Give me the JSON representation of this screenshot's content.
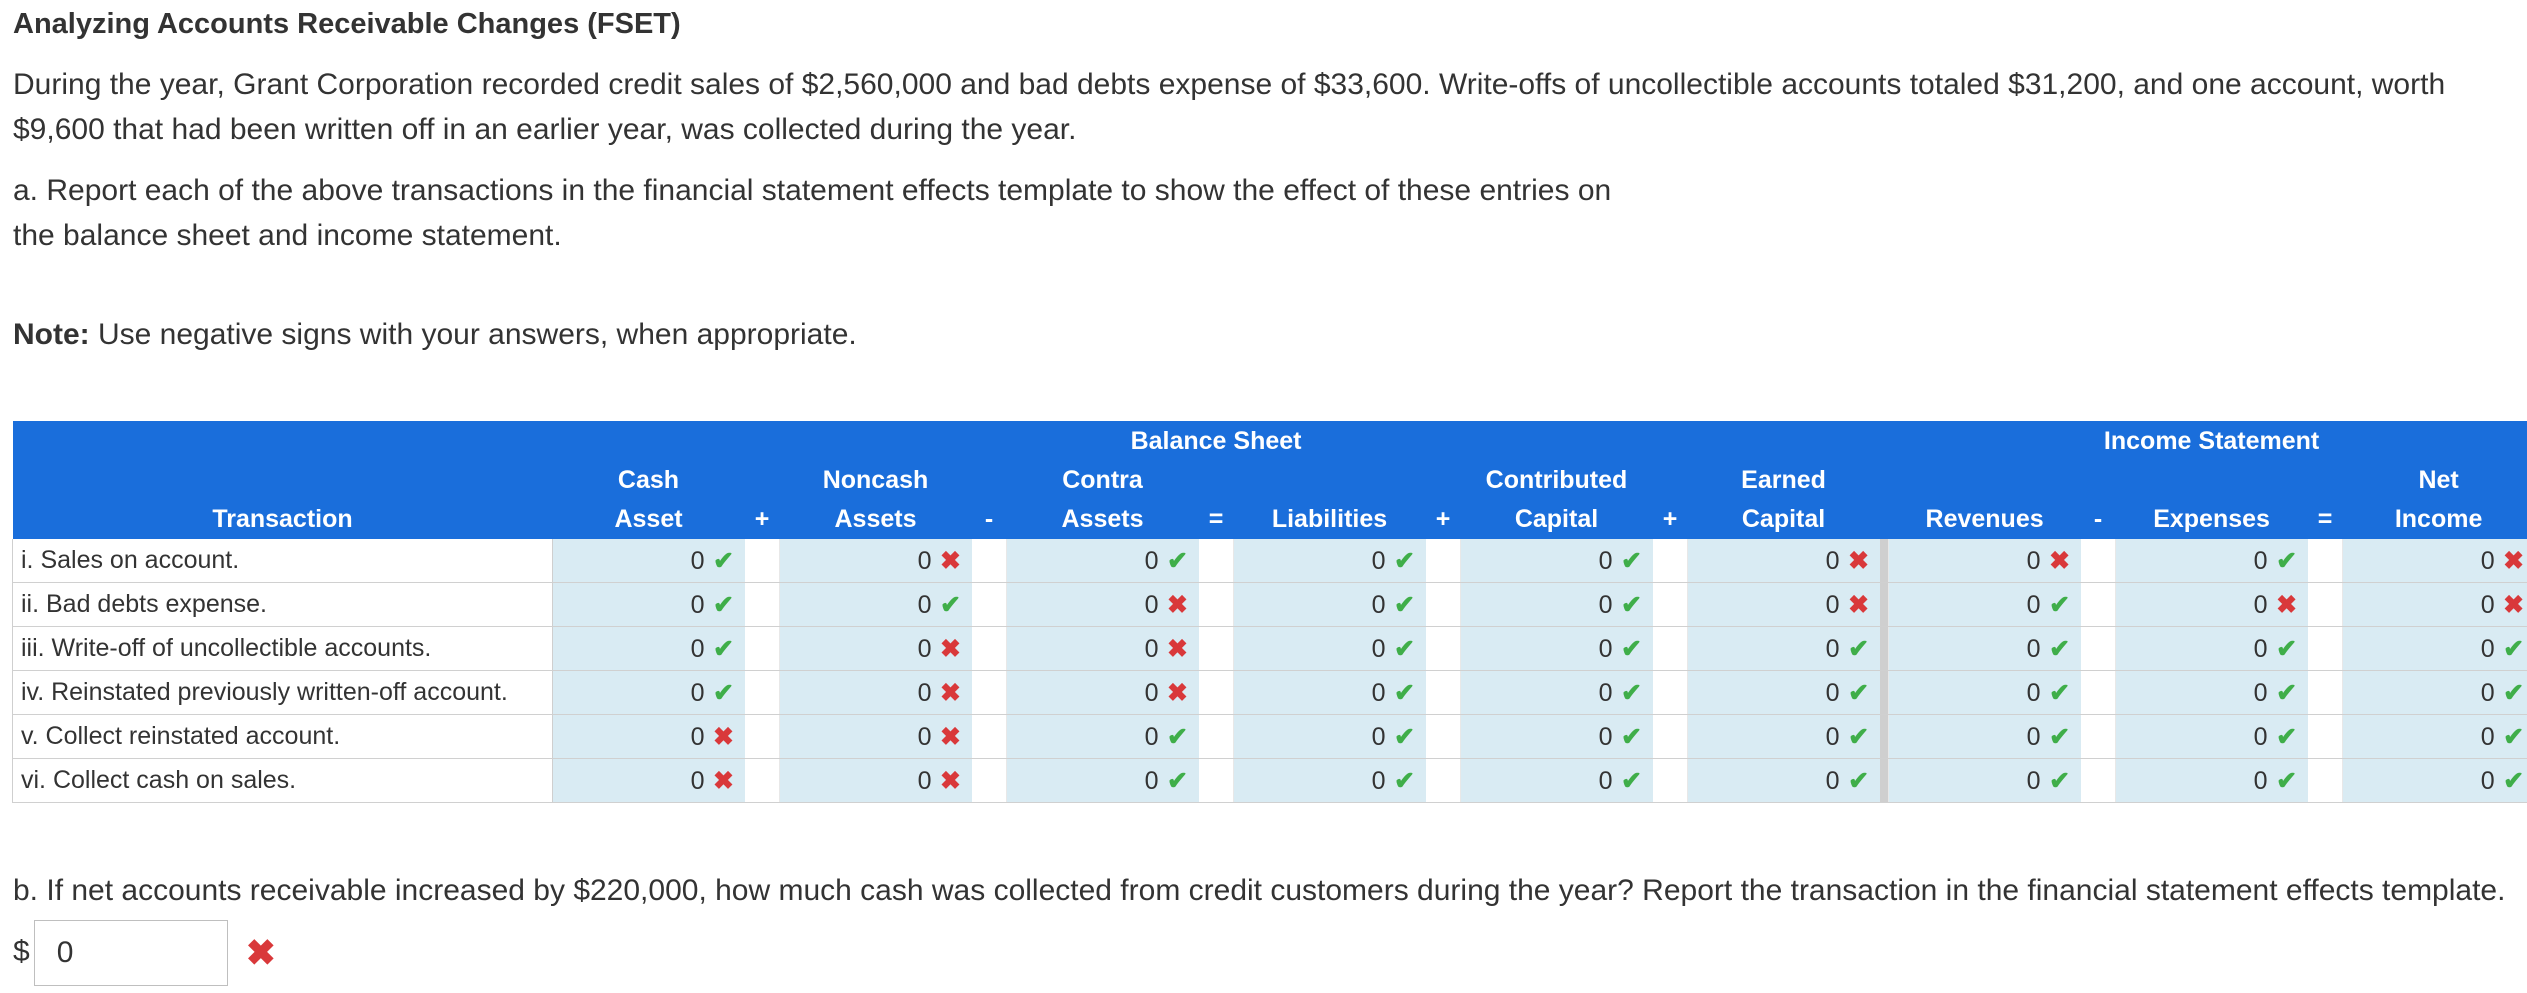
{
  "title": "Analyzing Accounts Receivable Changes (FSET)",
  "intro": "During the year, Grant Corporation recorded credit sales of $2,560,000 and bad debts expense of $33,600. Write-offs of uncollectible accounts totaled $31,200, and one account, worth $9,600 that had been written off in an earlier year, was collected during the year.",
  "part_a": "a. Report each of the above transactions in the financial statement effects template to show the effect of these entries on the balance sheet and income statement.",
  "note_label": "Note:",
  "note_text": " Use negative signs with your answers, when appropriate.",
  "table": {
    "group_balance": "Balance Sheet",
    "group_income": "Income Statement",
    "headers": {
      "transaction": "Transaction",
      "cash_top": "Cash",
      "cash_bot": "Asset",
      "plus1": "+",
      "noncash_top": "Noncash",
      "noncash_bot": "Assets",
      "minus1": "-",
      "contra_top": "Contra",
      "contra_bot": "Assets",
      "eq1": "=",
      "liabilities": "Liabilities",
      "plus2": "+",
      "contrib_top": "Contributed",
      "contrib_bot": "Capital",
      "plus3": "+",
      "earned_top": "Earned",
      "earned_bot": "Capital",
      "revenues": "Revenues",
      "minus2": "-",
      "expenses": "Expenses",
      "eq2": "=",
      "net_top": "Net",
      "net_bot": "Income"
    },
    "rows": [
      {
        "label": "i. Sales on account.",
        "cells": [
          [
            "0",
            "ok"
          ],
          [
            "0",
            "bad"
          ],
          [
            "0",
            "ok"
          ],
          [
            "0",
            "ok"
          ],
          [
            "0",
            "ok"
          ],
          [
            "0",
            "bad"
          ],
          [
            "0",
            "bad"
          ],
          [
            "0",
            "ok"
          ],
          [
            "0",
            "bad"
          ]
        ]
      },
      {
        "label": "ii. Bad debts expense.",
        "cells": [
          [
            "0",
            "ok"
          ],
          [
            "0",
            "ok"
          ],
          [
            "0",
            "bad"
          ],
          [
            "0",
            "ok"
          ],
          [
            "0",
            "ok"
          ],
          [
            "0",
            "bad"
          ],
          [
            "0",
            "ok"
          ],
          [
            "0",
            "bad"
          ],
          [
            "0",
            "bad"
          ]
        ]
      },
      {
        "label": "iii. Write-off of uncollectible accounts.",
        "cells": [
          [
            "0",
            "ok"
          ],
          [
            "0",
            "bad"
          ],
          [
            "0",
            "bad"
          ],
          [
            "0",
            "ok"
          ],
          [
            "0",
            "ok"
          ],
          [
            "0",
            "ok"
          ],
          [
            "0",
            "ok"
          ],
          [
            "0",
            "ok"
          ],
          [
            "0",
            "ok"
          ]
        ]
      },
      {
        "label": "iv. Reinstated previously written-off account.",
        "cells": [
          [
            "0",
            "ok"
          ],
          [
            "0",
            "bad"
          ],
          [
            "0",
            "bad"
          ],
          [
            "0",
            "ok"
          ],
          [
            "0",
            "ok"
          ],
          [
            "0",
            "ok"
          ],
          [
            "0",
            "ok"
          ],
          [
            "0",
            "ok"
          ],
          [
            "0",
            "ok"
          ]
        ]
      },
      {
        "label": "v. Collect reinstated account.",
        "cells": [
          [
            "0",
            "bad"
          ],
          [
            "0",
            "bad"
          ],
          [
            "0",
            "ok"
          ],
          [
            "0",
            "ok"
          ],
          [
            "0",
            "ok"
          ],
          [
            "0",
            "ok"
          ],
          [
            "0",
            "ok"
          ],
          [
            "0",
            "ok"
          ],
          [
            "0",
            "ok"
          ]
        ]
      },
      {
        "label": "vi. Collect cash on sales.",
        "cells": [
          [
            "0",
            "bad"
          ],
          [
            "0",
            "bad"
          ],
          [
            "0",
            "ok"
          ],
          [
            "0",
            "ok"
          ],
          [
            "0",
            "ok"
          ],
          [
            "0",
            "ok"
          ],
          [
            "0",
            "ok"
          ],
          [
            "0",
            "ok"
          ],
          [
            "0",
            "ok"
          ]
        ]
      }
    ]
  },
  "part_b_text": "b. If net accounts receivable increased by $220,000, how much cash was collected from credit customers during the year? Report the transaction in the financial statement effects template. $",
  "part_b_value": "0",
  "part_b_status": "incorrect",
  "marks": {
    "ok": "✔",
    "bad": "✖"
  },
  "colors": {
    "header_bg": "#1a6edb",
    "cell_bg": "#d9ebf3",
    "correct": "#3fae49",
    "incorrect": "#d9383a"
  }
}
